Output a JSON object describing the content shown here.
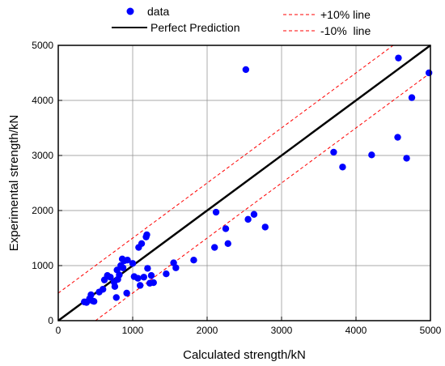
{
  "chart_data": {
    "type": "scatter",
    "xlabel": "Calculated strength/kN",
    "ylabel": "Experimental strength/kN",
    "xlim": [
      0,
      5000
    ],
    "ylim": [
      0,
      5000
    ],
    "xticks": [
      0,
      1000,
      2000,
      3000,
      4000,
      5000
    ],
    "yticks": [
      0,
      1000,
      2000,
      3000,
      4000,
      5000
    ],
    "x_tick_labels": [
      "0",
      "1000",
      "2000",
      "3000",
      "4000",
      "5000"
    ],
    "y_tick_labels": [
      "0",
      "1000",
      "2000",
      "3000",
      "4000",
      "5000"
    ],
    "grid": true,
    "legend_position": "top",
    "series": [
      {
        "name": "data",
        "type": "scatter",
        "color": "#0000ff",
        "points": [
          [
            350,
            340
          ],
          [
            380,
            330
          ],
          [
            420,
            400
          ],
          [
            440,
            470
          ],
          [
            460,
            360
          ],
          [
            480,
            350
          ],
          [
            550,
            520
          ],
          [
            600,
            570
          ],
          [
            620,
            740
          ],
          [
            660,
            820
          ],
          [
            700,
            790
          ],
          [
            750,
            700
          ],
          [
            760,
            620
          ],
          [
            780,
            420
          ],
          [
            790,
            920
          ],
          [
            800,
            750
          ],
          [
            820,
            830
          ],
          [
            840,
            1000
          ],
          [
            860,
            1120
          ],
          [
            870,
            960
          ],
          [
            890,
            1090
          ],
          [
            920,
            500
          ],
          [
            930,
            1100
          ],
          [
            1000,
            1040
          ],
          [
            1020,
            800
          ],
          [
            1070,
            770
          ],
          [
            1080,
            1330
          ],
          [
            1100,
            640
          ],
          [
            1120,
            1400
          ],
          [
            1150,
            790
          ],
          [
            1180,
            1520
          ],
          [
            1190,
            1560
          ],
          [
            1200,
            950
          ],
          [
            1230,
            680
          ],
          [
            1250,
            820
          ],
          [
            1280,
            690
          ],
          [
            1450,
            850
          ],
          [
            1550,
            1050
          ],
          [
            1580,
            960
          ],
          [
            1820,
            1100
          ],
          [
            2100,
            1330
          ],
          [
            2120,
            1970
          ],
          [
            2250,
            1670
          ],
          [
            2280,
            1400
          ],
          [
            2520,
            4560
          ],
          [
            2550,
            1840
          ],
          [
            2630,
            1930
          ],
          [
            2780,
            1700
          ],
          [
            3700,
            3060
          ],
          [
            3820,
            2790
          ],
          [
            4210,
            3010
          ],
          [
            4560,
            3330
          ],
          [
            4570,
            4770
          ],
          [
            4680,
            2950
          ],
          [
            4750,
            4050
          ],
          [
            4980,
            4500
          ]
        ]
      },
      {
        "name": "Perfect Prediction",
        "type": "line",
        "color": "#000000",
        "points": [
          [
            0,
            0
          ],
          [
            5000,
            5000
          ]
        ]
      },
      {
        "name": "+10% line",
        "type": "line",
        "color": "#ff0000",
        "style": "dashed",
        "points": [
          [
            0,
            500
          ],
          [
            4500,
            5000
          ]
        ]
      },
      {
        "name": "-10%  line",
        "type": "line",
        "color": "#ff0000",
        "style": "dashed",
        "points": [
          [
            500,
            0
          ],
          [
            5000,
            4500
          ]
        ]
      }
    ]
  }
}
